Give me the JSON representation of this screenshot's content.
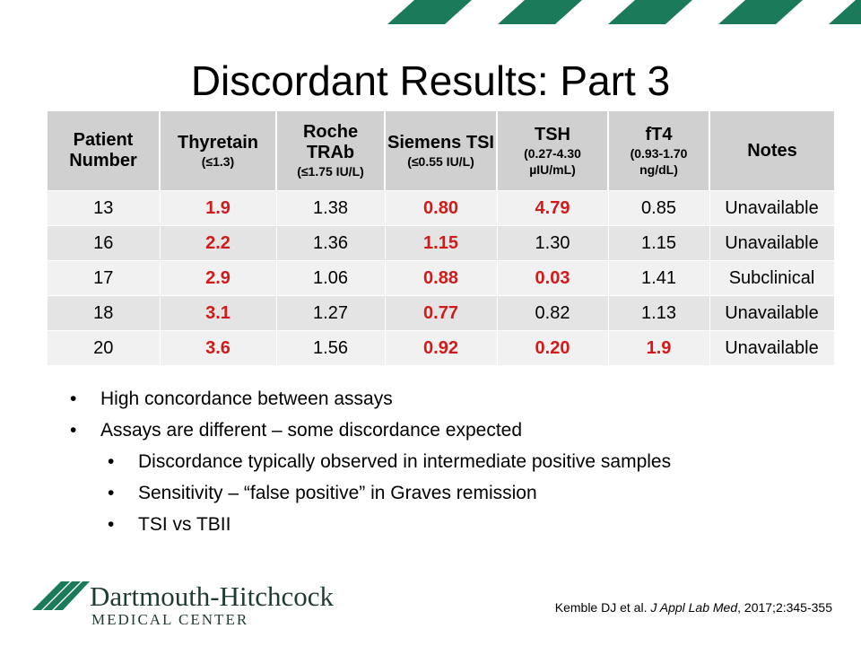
{
  "title": "Discordant Results: Part 3",
  "colors": {
    "brand_green": "#1a7a5a",
    "highlight_red": "#d21a1a"
  },
  "table": {
    "headers": [
      {
        "label": "Patient Number",
        "sub": ""
      },
      {
        "label": "Thyretain",
        "sub": "(≤1.3)"
      },
      {
        "label": "Roche TRAb",
        "sub": "(≤1.75 IU/L)"
      },
      {
        "label": "Siemens TSI",
        "sub": "(≤0.55 IU/L)"
      },
      {
        "label": "TSH",
        "sub": "(0.27-4.30 µIU/mL)"
      },
      {
        "label": "fT4",
        "sub": "(0.93-1.70 ng/dL)"
      },
      {
        "label": "Notes",
        "sub": ""
      }
    ],
    "rows": [
      {
        "cells": [
          "13",
          "1.9",
          "1.38",
          "0.80",
          "4.79",
          "0.85",
          "Unavailable"
        ],
        "highlight": [
          false,
          true,
          false,
          true,
          true,
          false,
          false
        ]
      },
      {
        "cells": [
          "16",
          "2.2",
          "1.36",
          "1.15",
          "1.30",
          "1.15",
          "Unavailable"
        ],
        "highlight": [
          false,
          true,
          false,
          true,
          false,
          false,
          false
        ]
      },
      {
        "cells": [
          "17",
          "2.9",
          "1.06",
          "0.88",
          "0.03",
          "1.41",
          "Subclinical"
        ],
        "highlight": [
          false,
          true,
          false,
          true,
          true,
          false,
          false
        ]
      },
      {
        "cells": [
          "18",
          "3.1",
          "1.27",
          "0.77",
          "0.82",
          "1.13",
          "Unavailable"
        ],
        "highlight": [
          false,
          true,
          false,
          true,
          false,
          false,
          false
        ]
      },
      {
        "cells": [
          "20",
          "3.6",
          "1.56",
          "0.92",
          "0.20",
          "1.9",
          "Unavailable"
        ],
        "highlight": [
          false,
          true,
          false,
          true,
          true,
          true,
          false
        ]
      }
    ]
  },
  "bullets": [
    {
      "text": "High concordance between assays",
      "level": 1
    },
    {
      "text": "Assays are different – some discordance expected",
      "level": 1
    },
    {
      "text": "Discordance typically observed in intermediate positive samples",
      "level": 2
    },
    {
      "text": "Sensitivity – “false positive” in Graves remission",
      "level": 2
    },
    {
      "text": "TSI vs TBII",
      "level": 2
    }
  ],
  "logo": {
    "name": "Dartmouth-Hitchcock",
    "subtitle": "MEDICAL CENTER"
  },
  "citation": {
    "authors": "Kemble DJ et al. ",
    "journal": "J Appl Lab Med",
    "details": ", 2017;2:345-355"
  }
}
